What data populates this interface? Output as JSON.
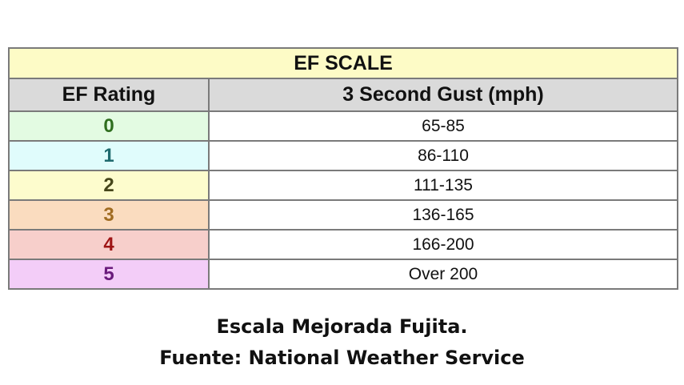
{
  "table": {
    "title": "EF SCALE",
    "headers": [
      "EF Rating",
      "3 Second Gust (mph)"
    ],
    "rows": [
      [
        "0",
        "65-85"
      ],
      [
        "1",
        "86-110"
      ],
      [
        "2",
        "111-135"
      ],
      [
        "3",
        "136-165"
      ],
      [
        "4",
        "166-200"
      ],
      [
        "5",
        "Over 200"
      ]
    ]
  },
  "caption": [
    "Escala Mejorada Fujita.",
    "Fuente: National Weather Service"
  ]
}
